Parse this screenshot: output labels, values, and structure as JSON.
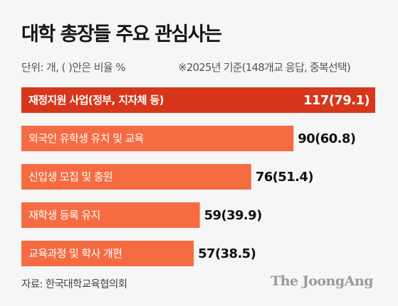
{
  "header": {
    "title": "대학 총장들 주요 관심사는",
    "unit_note": "단위: 개, ( )안은 비율 %",
    "basis_note": "※2025년 기준(148개교 응답, 중복선택)"
  },
  "chart_data": {
    "type": "bar",
    "orientation": "horizontal",
    "categories": [
      "재정지원 사업(정부, 지자체 등)",
      "외국인 유학생 유치 및 교육",
      "신입생 모집 및 충원",
      "재학생 등록 유지",
      "교육과정 및 학사 개편"
    ],
    "values": [
      117,
      90,
      76,
      59,
      57
    ],
    "value_labels": [
      "117(79.1)",
      "90(60.8)",
      "76(51.4)",
      "59(39.9)",
      "57(38.5)"
    ],
    "percent": [
      79.1,
      60.8,
      51.4,
      39.9,
      38.5
    ],
    "xlim": [
      0,
      117
    ],
    "highlight_color": "#d8361a",
    "bar_color": "#f56c42",
    "highlight_label_color": "#ffffff",
    "label_color": "#ffffff",
    "value_color": "#111111",
    "highlight_value_color": "#ffffff"
  },
  "footer": {
    "source": "자료: 한국대학교육협의회",
    "logo": "The JoongAng"
  }
}
